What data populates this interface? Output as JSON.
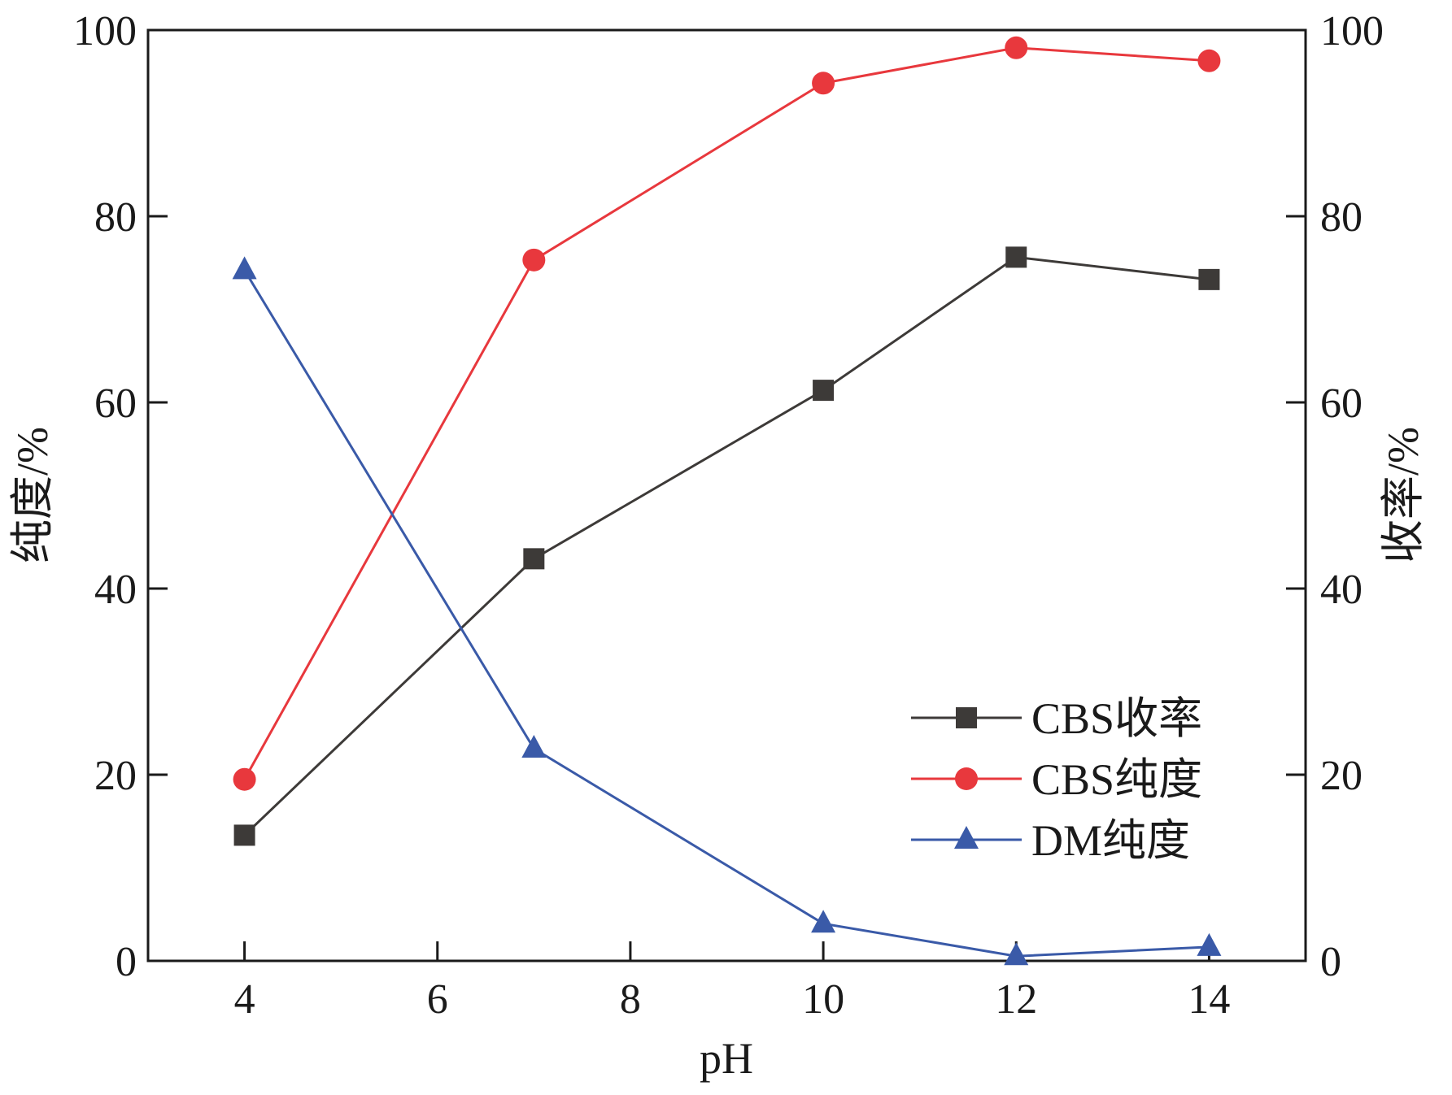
{
  "chart_data": {
    "type": "line",
    "title": "",
    "xlabel": "pH",
    "ylabel_left": "纯度/%",
    "ylabel_right": "收率/%",
    "x": [
      4,
      7,
      10,
      12,
      14
    ],
    "xlim": [
      3,
      15
    ],
    "ylim_left": [
      0,
      100
    ],
    "ylim_right": [
      0,
      100
    ],
    "x_ticks": [
      4,
      6,
      8,
      10,
      12,
      14
    ],
    "y_ticks_left": [
      0,
      20,
      40,
      60,
      80,
      100
    ],
    "y_ticks_right": [
      0,
      20,
      40,
      60,
      80,
      100
    ],
    "grid": false,
    "legend_position": "lower-right",
    "series": [
      {
        "name": "CBS收率",
        "axis": "right",
        "marker": "square",
        "color": "#3d3a38",
        "values": [
          13.5,
          43.2,
          61.3,
          75.6,
          73.2
        ]
      },
      {
        "name": "CBS纯度",
        "axis": "left",
        "marker": "circle",
        "color": "#e8383d",
        "values": [
          19.5,
          75.3,
          94.3,
          98.1,
          96.7
        ]
      },
      {
        "name": "DM纯度",
        "axis": "left",
        "marker": "triangle",
        "color": "#3a5aa8",
        "values": [
          74.2,
          22.8,
          4.0,
          0.5,
          1.5
        ]
      }
    ]
  }
}
